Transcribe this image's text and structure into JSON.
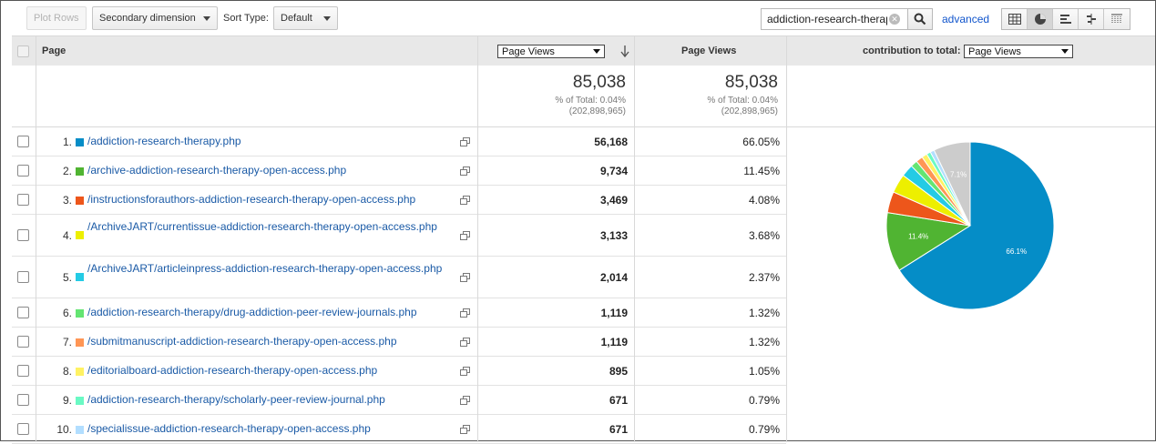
{
  "toolbar": {
    "plot_rows": "Plot Rows",
    "secondary_dimension": "Secondary dimension",
    "sort_type_label": "Sort Type:",
    "sort_type_value": "Default",
    "search_value": "addiction-research-therap",
    "advanced_link": "advanced"
  },
  "table": {
    "headers": {
      "page": "Page",
      "metric_select": "Page Views",
      "page_views": "Page Views",
      "contribution_label": "contribution to total:",
      "contribution_select": "Page Views"
    },
    "totals": {
      "col1_value": "85,038",
      "col1_pct": "% of Total: 0.04%",
      "col1_total": "(202,898,965)",
      "col2_value": "85,038",
      "col2_pct": "% of Total: 0.04%",
      "col2_total": "(202,898,965)"
    },
    "rows": [
      {
        "num": "1.",
        "page": "/addiction-research-therapy.php",
        "views": "56,168",
        "pct": "66.05%",
        "color": "#058dc7"
      },
      {
        "num": "2.",
        "page": "/archive-addiction-research-therapy-open-access.php",
        "views": "9,734",
        "pct": "11.45%",
        "color": "#50b432"
      },
      {
        "num": "3.",
        "page": "/instructionsforauthors-addiction-research-therapy-open-access.php",
        "views": "3,469",
        "pct": "4.08%",
        "color": "#ed561b"
      },
      {
        "num": "4.",
        "page": "/ArchiveJART/currentissue-addiction-research-therapy-open-access.php",
        "views": "3,133",
        "pct": "3.68%",
        "color": "#edef00"
      },
      {
        "num": "5.",
        "page": "/ArchiveJART/articleinpress-addiction-research-therapy-open-access.php",
        "views": "2,014",
        "pct": "2.37%",
        "color": "#24cbe5"
      },
      {
        "num": "6.",
        "page": "/addiction-research-therapy/drug-addiction-peer-review-journals.php",
        "views": "1,119",
        "pct": "1.32%",
        "color": "#64e572"
      },
      {
        "num": "7.",
        "page": "/submitmanuscript-addiction-research-therapy-open-access.php",
        "views": "1,119",
        "pct": "1.32%",
        "color": "#ff9655"
      },
      {
        "num": "8.",
        "page": "/editorialboard-addiction-research-therapy-open-access.php",
        "views": "895",
        "pct": "1.05%",
        "color": "#fff263"
      },
      {
        "num": "9.",
        "page": "/addiction-research-therapy/scholarly-peer-review-journal.php",
        "views": "671",
        "pct": "0.79%",
        "color": "#6af9c4"
      },
      {
        "num": "10.",
        "page": "/specialissue-addiction-research-therapy-open-access.php",
        "views": "671",
        "pct": "0.79%",
        "color": "#b2deff"
      }
    ]
  },
  "chart_data": {
    "type": "pie",
    "categories": [
      "/addiction-research-therapy.php",
      "/archive-addiction-research-therapy-open-access.php",
      "/instructionsforauthors-addiction-research-therapy-open-access.php",
      "/ArchiveJART/currentissue-addiction-research-therapy-open-access.php",
      "/ArchiveJART/articleinpress-addiction-research-therapy-open-access.php",
      "/addiction-research-therapy/drug-addiction-peer-review-journals.php",
      "/submitmanuscript-addiction-research-therapy-open-access.php",
      "/editorialboard-addiction-research-therapy-open-access.php",
      "/addiction-research-therapy/scholarly-peer-review-journal.php",
      "/specialissue-addiction-research-therapy-open-access.php",
      "other"
    ],
    "values": [
      66.05,
      11.45,
      4.08,
      3.68,
      2.37,
      1.32,
      1.32,
      1.05,
      0.79,
      0.79,
      7.1
    ],
    "colors": [
      "#058dc7",
      "#50b432",
      "#ed561b",
      "#edef00",
      "#24cbe5",
      "#64e572",
      "#ff9655",
      "#fff263",
      "#6af9c4",
      "#b2deff",
      "#cccccc"
    ],
    "slice_labels": [
      "66.1%",
      "11.4%",
      "",
      "",
      "",
      "",
      "",
      "",
      "",
      "",
      "7.1%"
    ]
  }
}
